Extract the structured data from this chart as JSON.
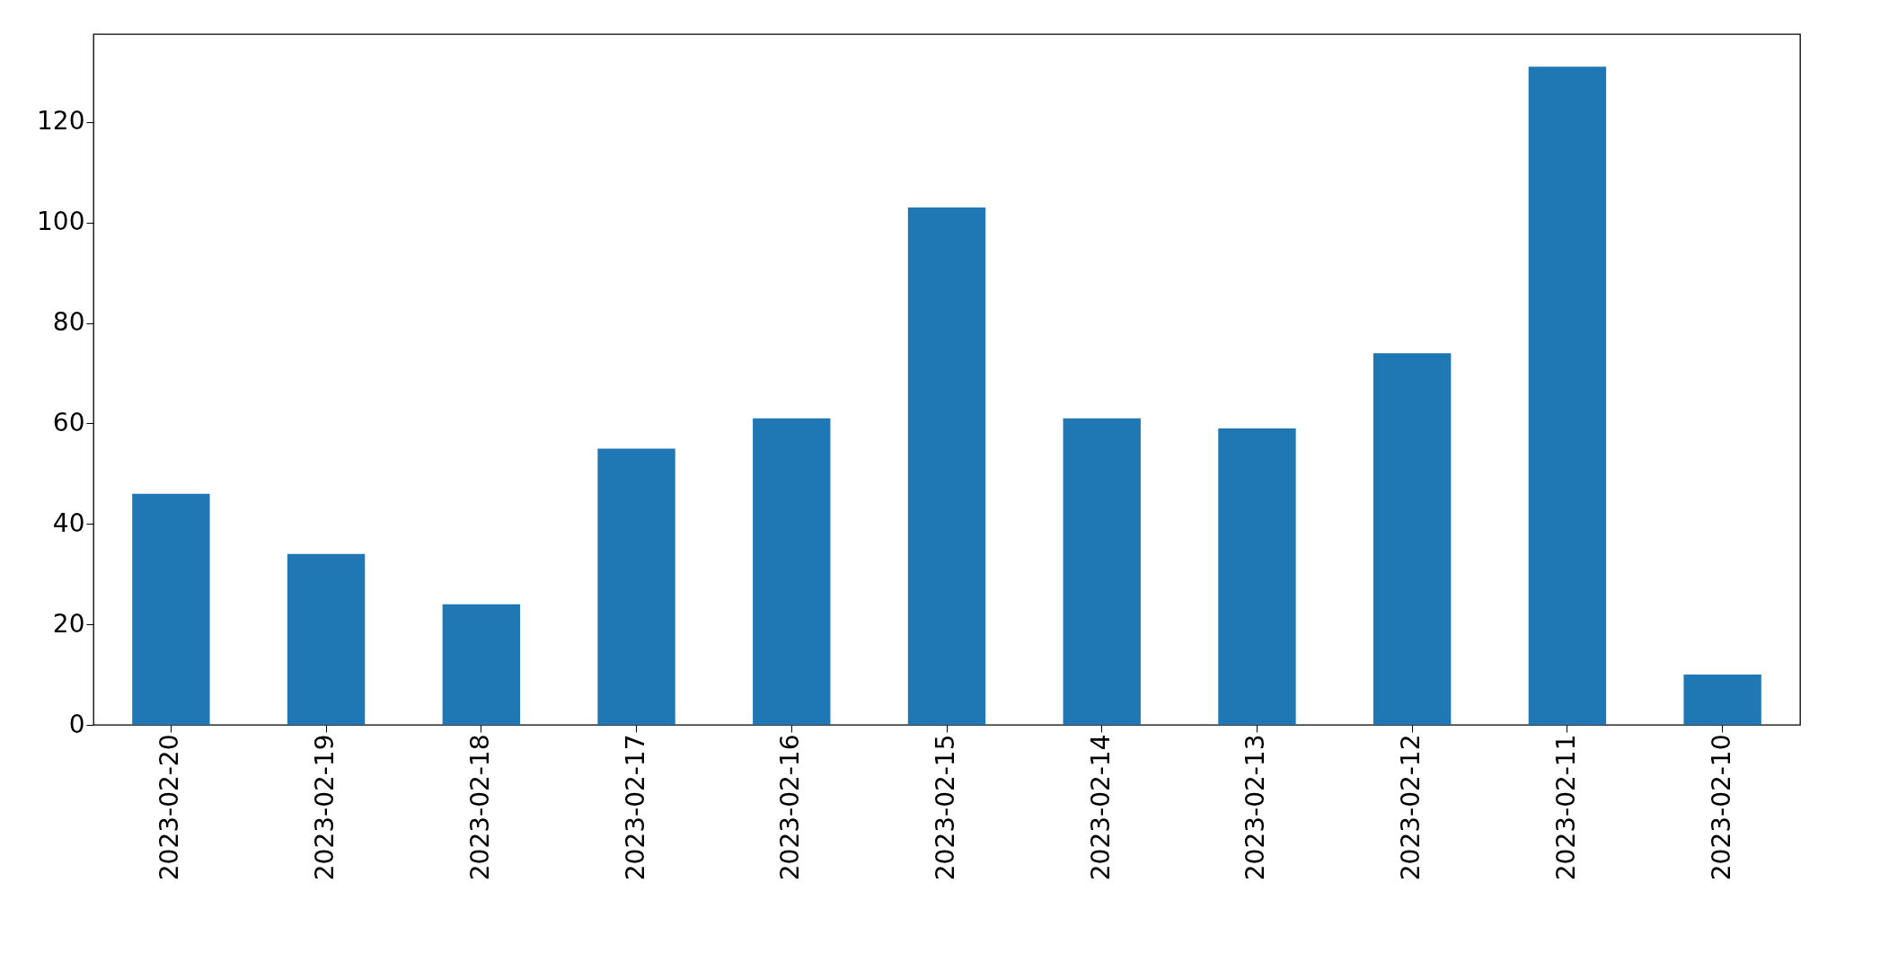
{
  "chart_data": {
    "type": "bar",
    "categories": [
      "2023-02-20",
      "2023-02-19",
      "2023-02-18",
      "2023-02-17",
      "2023-02-16",
      "2023-02-15",
      "2023-02-14",
      "2023-02-13",
      "2023-02-12",
      "2023-02-11",
      "2023-02-10"
    ],
    "values": [
      46,
      34,
      24,
      55,
      61,
      103,
      61,
      59,
      74,
      131,
      10
    ],
    "color": "#1f77b4",
    "ylim": [
      0,
      137.5
    ],
    "yticks": [
      0,
      20,
      40,
      60,
      80,
      100,
      120
    ],
    "grid": false
  }
}
